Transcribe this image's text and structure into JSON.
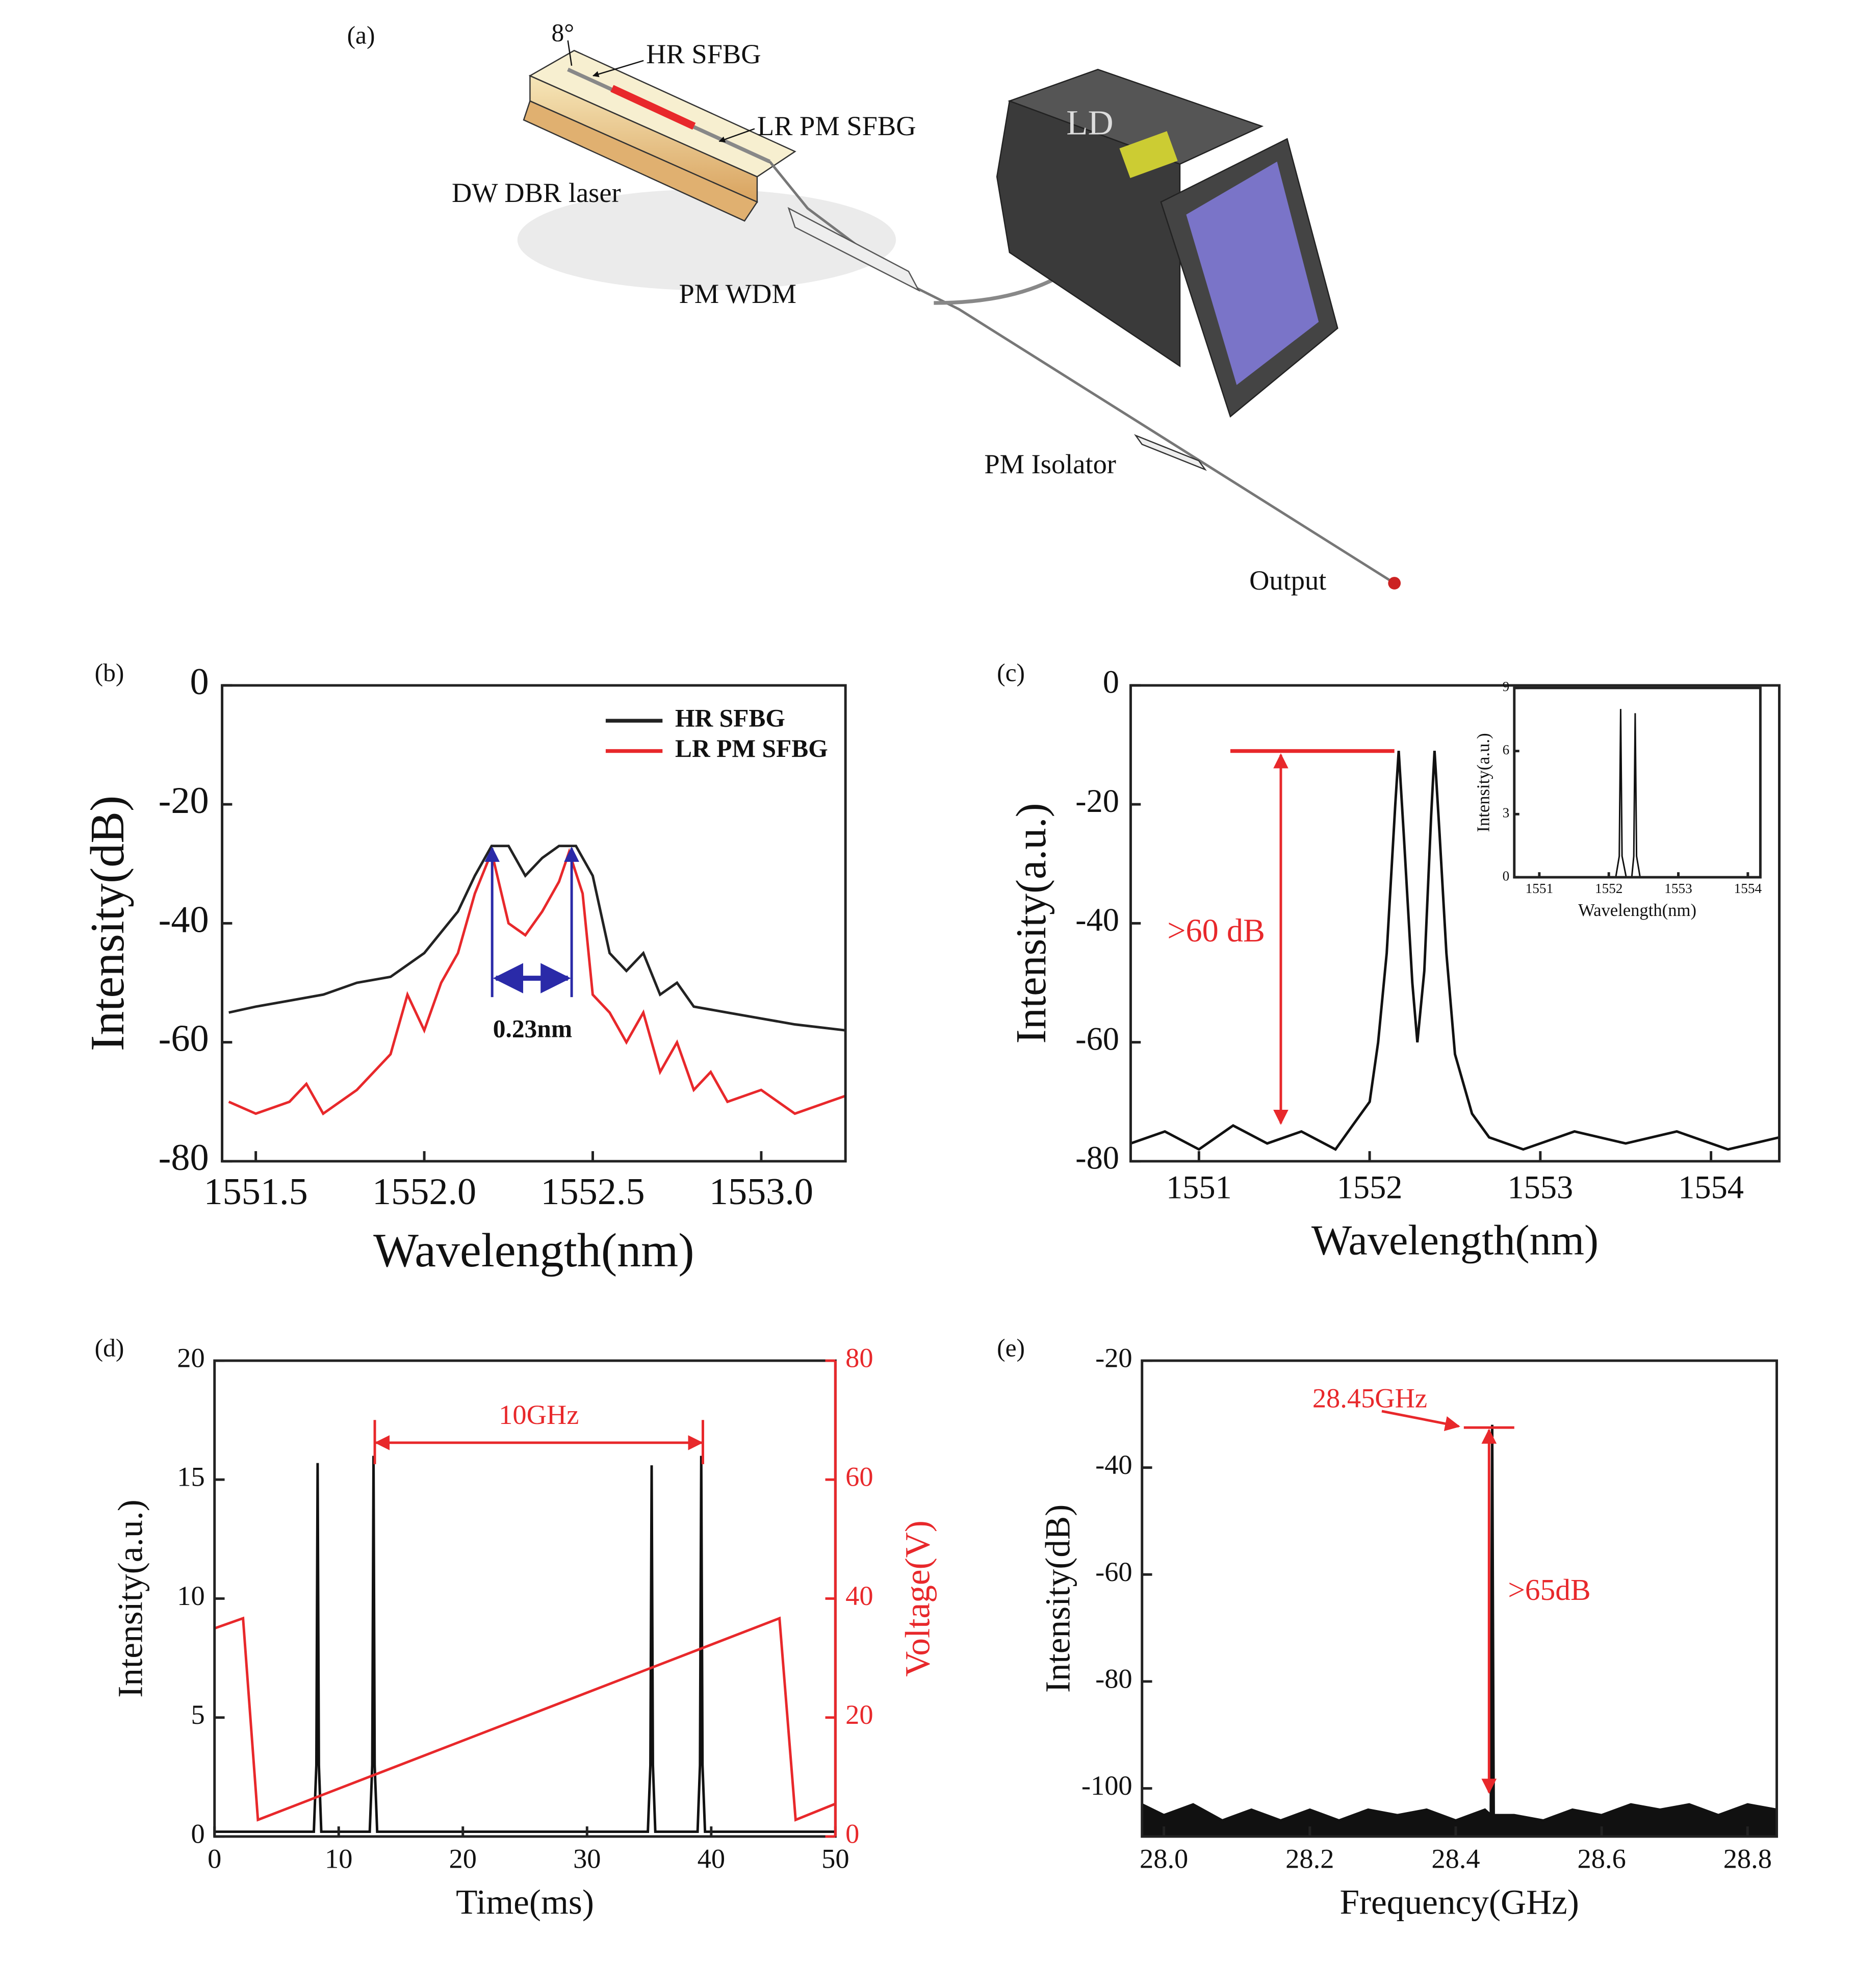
{
  "diagram": {
    "label": "(a)",
    "angle": "8°",
    "parts": [
      "HR SFBG",
      "LR PM SFBG",
      "DW DBR laser",
      "PM WDM",
      "LD",
      "PM Isolator",
      "Output"
    ]
  },
  "chart_data": [
    {
      "type": "line",
      "panel": "(b)",
      "xlabel": "Wavelength(nm)",
      "ylabel": "Intensity(dB)",
      "xlim": [
        1551.4,
        1553.25
      ],
      "ylim": [
        -80,
        0
      ],
      "xticks": [
        1551.5,
        {
          "value": 1552,
          "label": "1552.0"
        },
        1552.5,
        {
          "value": 1553,
          "label": "1553.0"
        }
      ],
      "yticks": [
        0,
        -20,
        -40,
        -60,
        -80
      ],
      "legend": "upper right",
      "annotations": [
        "0.23nm"
      ],
      "series": [
        {
          "name": "HR SFBG",
          "color": "#222222",
          "x": [
            1551.42,
            1551.5,
            1551.6,
            1551.7,
            1551.8,
            1551.9,
            1552.0,
            1552.1,
            1552.15,
            1552.2,
            1552.25,
            1552.3,
            1552.35,
            1552.4,
            1552.45,
            1552.5,
            1552.55,
            1552.6,
            1552.65,
            1552.7,
            1552.75,
            1552.8,
            1552.9,
            1553.0,
            1553.1,
            1553.25
          ],
          "values": [
            -55,
            -54,
            -53,
            -52,
            -50,
            -49,
            -45,
            -38,
            -32,
            -27,
            -27,
            -32,
            -29,
            -27,
            -27,
            -32,
            -45,
            -48,
            -45,
            -52,
            -50,
            -54,
            -55,
            -56,
            -57,
            -58
          ]
        },
        {
          "name": "LR PM SFBG",
          "color": "#e8282b",
          "x": [
            1551.42,
            1551.5,
            1551.6,
            1551.65,
            1551.7,
            1551.8,
            1551.9,
            1551.95,
            1552.0,
            1552.05,
            1552.1,
            1552.15,
            1552.2,
            1552.25,
            1552.3,
            1552.35,
            1552.4,
            1552.43,
            1552.47,
            1552.5,
            1552.55,
            1552.6,
            1552.65,
            1552.7,
            1552.75,
            1552.8,
            1552.85,
            1552.9,
            1553.0,
            1553.1,
            1553.2,
            1553.25
          ],
          "values": [
            -70,
            -72,
            -70,
            -67,
            -72,
            -68,
            -62,
            -52,
            -58,
            -50,
            -45,
            -35,
            -28,
            -40,
            -42,
            -38,
            -33,
            -28,
            -35,
            -52,
            -55,
            -60,
            -55,
            -65,
            -60,
            -68,
            -65,
            -70,
            -68,
            -72,
            -70,
            -69
          ]
        }
      ]
    },
    {
      "type": "line",
      "panel": "(c)",
      "xlabel": "Wavelength(nm)",
      "ylabel": "Intensity(a.u.)",
      "xlim": [
        1550.6,
        1554.4
      ],
      "ylim": [
        -80,
        0
      ],
      "xticks": [
        1551,
        1552,
        1553,
        1554
      ],
      "yticks": [
        0,
        -20,
        -40,
        -60,
        -80
      ],
      "annotations": [
        ">60 dB"
      ],
      "series": [
        {
          "color": "#111111",
          "x": [
            1550.6,
            1550.8,
            1551.0,
            1551.2,
            1551.4,
            1551.6,
            1551.8,
            1551.9,
            1552.0,
            1552.05,
            1552.1,
            1552.15,
            1552.17,
            1552.2,
            1552.25,
            1552.28,
            1552.32,
            1552.36,
            1552.38,
            1552.41,
            1552.45,
            1552.5,
            1552.6,
            1552.7,
            1552.9,
            1553.2,
            1553.5,
            1553.8,
            1554.1,
            1554.4
          ],
          "values": [
            -77,
            -75,
            -78,
            -74,
            -77,
            -75,
            -78,
            -74,
            -70,
            -60,
            -45,
            -20,
            -11,
            -25,
            -50,
            -60,
            -48,
            -22,
            -11,
            -25,
            -45,
            -62,
            -72,
            -76,
            -78,
            -75,
            -77,
            -75,
            -78,
            -76
          ]
        }
      ]
    },
    {
      "type": "line",
      "xlabel": "Wavelength(nm)",
      "ylabel": "Intensity(a.u.)",
      "xlim": [
        1550.64,
        1554.18
      ],
      "ylim": [
        0,
        9
      ],
      "xticks": [
        1551,
        1552,
        1553,
        1554
      ],
      "yticks": [
        0,
        3,
        6,
        9
      ],
      "series": [
        {
          "color": "#111111",
          "x": [
            1550.64,
            1552.1,
            1552.15,
            1552.17,
            1552.19,
            1552.25,
            1552.33,
            1552.36,
            1552.38,
            1552.4,
            1552.45,
            1554.18
          ],
          "values": [
            0,
            0,
            1,
            8,
            1,
            0,
            0,
            1,
            7.8,
            1,
            0,
            0
          ]
        }
      ]
    },
    {
      "type": "line",
      "panel": "(d)",
      "xlabel": "Time(ms)",
      "ylabel": "Intensity(a.u.)",
      "y2label": "Voltage(V)",
      "xlim": [
        0,
        50
      ],
      "ylim": [
        0,
        20
      ],
      "y2lim": [
        0,
        80
      ],
      "xticks": [
        0,
        10,
        20,
        30,
        40,
        50
      ],
      "yticks": [
        0,
        5,
        10,
        15,
        20
      ],
      "y2ticks": [
        0,
        20,
        40,
        60,
        80
      ],
      "annotations": [
        "10GHz"
      ],
      "series": [
        {
          "color": "#111111",
          "x": [
            0,
            8.0,
            8.2,
            8.3,
            8.4,
            8.6,
            12.5,
            12.7,
            12.8,
            12.9,
            13.1,
            34.9,
            35.1,
            35.2,
            35.3,
            35.5,
            38.9,
            39.1,
            39.2,
            39.3,
            39.5,
            50
          ],
          "values": [
            0.2,
            0.2,
            3,
            15.7,
            3,
            0.2,
            0.2,
            3,
            16,
            3,
            0.2,
            0.2,
            3,
            15.6,
            3,
            0.2,
            0.2,
            3,
            16,
            3,
            0.2,
            0.2
          ]
        },
        {
          "color": "#e8282b",
          "axis": "y2",
          "x": [
            0,
            2.3,
            3.5,
            45.5,
            46.8,
            50
          ],
          "values": [
            35,
            36.7,
            2.8,
            36.7,
            2.8,
            5.5
          ]
        }
      ]
    },
    {
      "type": "line",
      "panel": "(e)",
      "xlabel": "Frequency(GHz)",
      "ylabel": "Intensity(dB)",
      "xlim": [
        27.97,
        28.84
      ],
      "ylim": [
        -109,
        -20
      ],
      "xticks": [
        {
          "value": 28,
          "label": "28.0"
        },
        28.2,
        28.4,
        28.6,
        28.8
      ],
      "yticks": [
        -20,
        -40,
        -60,
        -80,
        -100
      ],
      "annotations": [
        "28.45GHz",
        ">65dB"
      ],
      "series": [
        {
          "color": "#111111",
          "x": [
            27.97,
            28.0,
            28.04,
            28.08,
            28.12,
            28.16,
            28.2,
            28.24,
            28.28,
            28.32,
            28.36,
            28.4,
            28.44,
            28.448,
            28.45,
            28.452,
            28.48,
            28.52,
            28.56,
            28.6,
            28.64,
            28.68,
            28.72,
            28.76,
            28.8,
            28.84
          ],
          "values": [
            -103,
            -105,
            -103,
            -106,
            -104,
            -106,
            -104,
            -106,
            -104,
            -105,
            -104,
            -106,
            -104,
            -105,
            -32,
            -105,
            -105,
            -106,
            -104,
            -105,
            -103,
            -104,
            -103,
            -105,
            -103,
            -104
          ]
        }
      ]
    }
  ]
}
